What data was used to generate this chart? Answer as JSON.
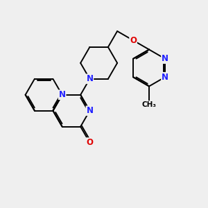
{
  "bg_color": "#efefef",
  "bond_color": "#000000",
  "N_color": "#2020ff",
  "O_color": "#e00000",
  "C_color": "#000000",
  "bond_width": 1.4,
  "font_size_atom": 8.5,
  "font_size_methyl": 7.5,
  "figsize": [
    3.0,
    3.0
  ],
  "dpi": 100,
  "xlim": [
    0,
    10
  ],
  "ylim": [
    0,
    10
  ]
}
